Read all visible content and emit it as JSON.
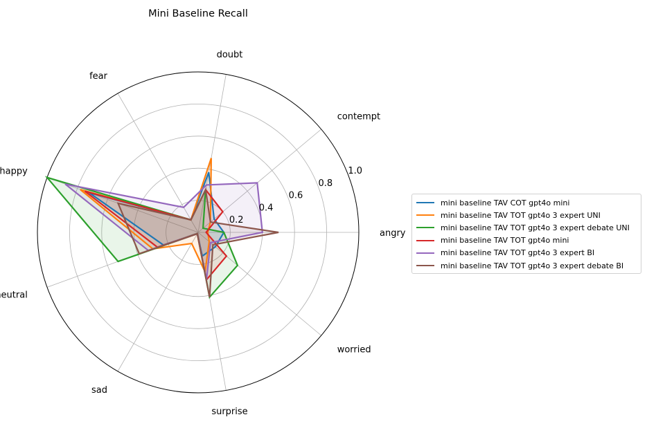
{
  "chart_data": {
    "type": "radar",
    "title": "Mini Baseline Recall",
    "categories": [
      "angry",
      "contempt",
      "doubt",
      "fear",
      "happy",
      "neutral",
      "sad",
      "surprise",
      "worried"
    ],
    "rlim": [
      0,
      1.0
    ],
    "radial_ticks": [
      {
        "value": 0.2,
        "label": "0.2"
      },
      {
        "value": 0.4,
        "label": "0.4"
      },
      {
        "value": 0.6,
        "label": "0.6"
      },
      {
        "value": 0.8,
        "label": "0.8"
      },
      {
        "value": 1.0,
        "label": "1.0"
      }
    ],
    "grid": true,
    "legend_position": "right",
    "series": [
      {
        "name": "mini baseline TAV COT gpt4o mini",
        "color": "#1f77b4",
        "values": [
          0.16,
          0.13,
          0.38,
          0.09,
          0.72,
          0.23,
          0.01,
          0.15,
          0.14
        ]
      },
      {
        "name": "mini baseline TAV TOT gpt4o 3 expert UNI",
        "color": "#ff7f0e",
        "values": [
          0.06,
          0.1,
          0.47,
          0.09,
          0.78,
          0.3,
          0.08,
          0.25,
          0.09
        ]
      },
      {
        "name": "mini baseline TAV TOT gpt4o 3 expert debate UNI",
        "color": "#2ca02c",
        "values": [
          0.16,
          0.04,
          0.27,
          0.09,
          1.0,
          0.53,
          0.01,
          0.41,
          0.32
        ]
      },
      {
        "name": "mini baseline TAV TOT gpt4o mini",
        "color": "#d62728",
        "values": [
          0.05,
          0.2,
          0.27,
          0.09,
          0.75,
          0.27,
          0.01,
          0.3,
          0.23
        ]
      },
      {
        "name": "mini baseline TAV TOT gpt4o 3 expert BI",
        "color": "#9467bd",
        "values": [
          0.4,
          0.48,
          0.3,
          0.18,
          0.88,
          0.33,
          0.01,
          0.3,
          0.1
        ]
      },
      {
        "name": "mini baseline TAV TOT gpt4o 3 expert debate BI",
        "color": "#8c564b",
        "values": [
          0.5,
          0.1,
          0.27,
          0.09,
          0.53,
          0.39,
          0.01,
          0.41,
          0.12
        ]
      }
    ]
  }
}
